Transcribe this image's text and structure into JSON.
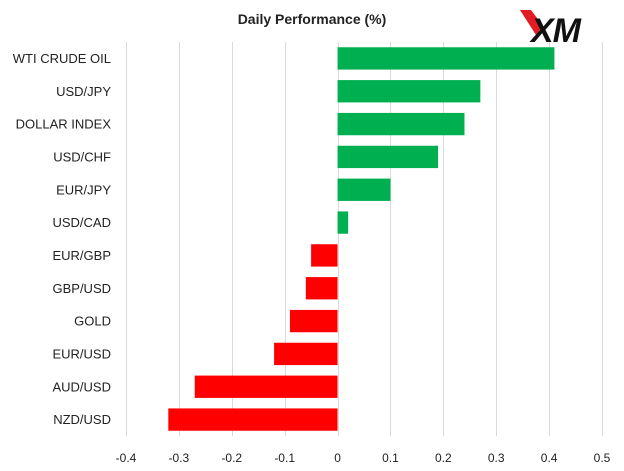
{
  "brand": {
    "logo_text": "XM",
    "accent_color": "#e31b23"
  },
  "chart_data": {
    "type": "bar",
    "orientation": "horizontal",
    "title": "Daily Performance (%)",
    "categories": [
      "WTI CRUDE OIL",
      "USD/JPY",
      "DOLLAR INDEX",
      "USD/CHF",
      "EUR/JPY",
      "USD/CAD",
      "EUR/GBP",
      "GBP/USD",
      "GOLD",
      "EUR/USD",
      "AUD/USD",
      "NZD/USD"
    ],
    "values": [
      0.41,
      0.27,
      0.24,
      0.19,
      0.1,
      0.02,
      -0.05,
      -0.06,
      -0.09,
      -0.12,
      -0.27,
      -0.32
    ],
    "xlim": [
      -0.4,
      0.5
    ],
    "xticks": [
      -0.4,
      -0.3,
      -0.2,
      -0.1,
      0,
      0.1,
      0.2,
      0.3,
      0.4,
      0.5
    ],
    "xtick_labels": [
      "-0.4",
      "-0.3",
      "-0.2",
      "-0.1",
      "0",
      "0.1",
      "0.2",
      "0.3",
      "0.4",
      "0.5"
    ],
    "grid": "vertical",
    "positive_color": "#00b050",
    "negative_color": "#ff0000"
  }
}
